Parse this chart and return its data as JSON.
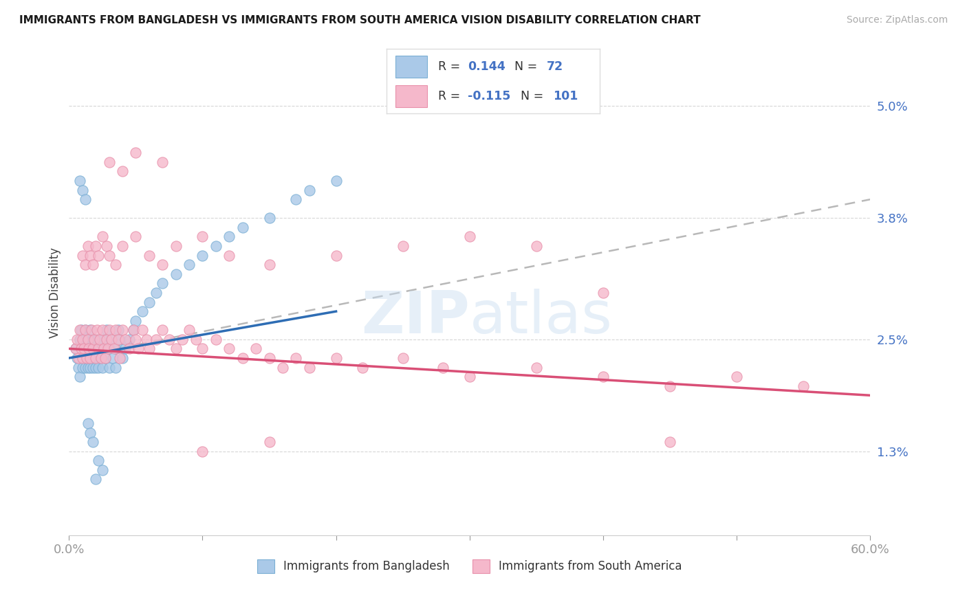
{
  "title": "IMMIGRANTS FROM BANGLADESH VS IMMIGRANTS FROM SOUTH AMERICA VISION DISABILITY CORRELATION CHART",
  "source": "Source: ZipAtlas.com",
  "ylabel": "Vision Disability",
  "xlim": [
    0.0,
    0.6
  ],
  "ylim": [
    0.004,
    0.056
  ],
  "yticks": [
    0.013,
    0.025,
    0.038,
    0.05
  ],
  "ytick_labels": [
    "1.3%",
    "2.5%",
    "3.8%",
    "5.0%"
  ],
  "blue_color": "#aac9e8",
  "blue_edge_color": "#7aafd4",
  "pink_color": "#f5b8cb",
  "pink_edge_color": "#e890aa",
  "blue_line_color": "#2e6db4",
  "pink_line_color": "#d94f76",
  "dashed_line_color": "#b8b8b8",
  "axis_color": "#4472c4",
  "background_color": "#ffffff",
  "watermark": "ZIPatlas",
  "blue_scatter_x": [
    0.005,
    0.006,
    0.007,
    0.008,
    0.008,
    0.009,
    0.01,
    0.01,
    0.01,
    0.011,
    0.012,
    0.012,
    0.013,
    0.013,
    0.014,
    0.014,
    0.015,
    0.015,
    0.016,
    0.016,
    0.017,
    0.018,
    0.018,
    0.019,
    0.02,
    0.02,
    0.021,
    0.022,
    0.023,
    0.024,
    0.025,
    0.025,
    0.026,
    0.027,
    0.028,
    0.03,
    0.03,
    0.032,
    0.033,
    0.035,
    0.035,
    0.037,
    0.038,
    0.04,
    0.042,
    0.045,
    0.048,
    0.05,
    0.055,
    0.06,
    0.065,
    0.07,
    0.08,
    0.09,
    0.1,
    0.11,
    0.12,
    0.13,
    0.15,
    0.17,
    0.18,
    0.2,
    0.008,
    0.01,
    0.012,
    0.014,
    0.016,
    0.018,
    0.02,
    0.022,
    0.025
  ],
  "blue_scatter_y": [
    0.024,
    0.023,
    0.022,
    0.025,
    0.021,
    0.026,
    0.023,
    0.024,
    0.022,
    0.025,
    0.022,
    0.026,
    0.023,
    0.024,
    0.022,
    0.025,
    0.023,
    0.024,
    0.022,
    0.026,
    0.023,
    0.022,
    0.025,
    0.024,
    0.023,
    0.022,
    0.025,
    0.022,
    0.024,
    0.023,
    0.022,
    0.025,
    0.024,
    0.023,
    0.026,
    0.024,
    0.022,
    0.025,
    0.023,
    0.024,
    0.022,
    0.026,
    0.025,
    0.023,
    0.024,
    0.025,
    0.026,
    0.027,
    0.028,
    0.029,
    0.03,
    0.031,
    0.032,
    0.033,
    0.034,
    0.035,
    0.036,
    0.037,
    0.038,
    0.04,
    0.041,
    0.042,
    0.042,
    0.041,
    0.04,
    0.016,
    0.015,
    0.014,
    0.01,
    0.012,
    0.011
  ],
  "pink_scatter_x": [
    0.005,
    0.006,
    0.007,
    0.008,
    0.009,
    0.01,
    0.01,
    0.011,
    0.012,
    0.013,
    0.014,
    0.015,
    0.016,
    0.017,
    0.018,
    0.019,
    0.02,
    0.021,
    0.022,
    0.023,
    0.024,
    0.025,
    0.026,
    0.027,
    0.028,
    0.029,
    0.03,
    0.032,
    0.034,
    0.035,
    0.037,
    0.038,
    0.04,
    0.042,
    0.045,
    0.048,
    0.05,
    0.052,
    0.055,
    0.058,
    0.06,
    0.065,
    0.07,
    0.075,
    0.08,
    0.085,
    0.09,
    0.095,
    0.1,
    0.11,
    0.12,
    0.13,
    0.14,
    0.15,
    0.16,
    0.17,
    0.18,
    0.2,
    0.22,
    0.25,
    0.28,
    0.3,
    0.35,
    0.4,
    0.45,
    0.5,
    0.55,
    0.01,
    0.012,
    0.014,
    0.016,
    0.018,
    0.02,
    0.022,
    0.025,
    0.028,
    0.03,
    0.035,
    0.04,
    0.05,
    0.06,
    0.07,
    0.08,
    0.1,
    0.12,
    0.15,
    0.2,
    0.25,
    0.3,
    0.35,
    0.4,
    0.45,
    0.03,
    0.04,
    0.05,
    0.07,
    0.1,
    0.15
  ],
  "pink_scatter_y": [
    0.024,
    0.025,
    0.023,
    0.026,
    0.024,
    0.023,
    0.025,
    0.024,
    0.026,
    0.023,
    0.025,
    0.024,
    0.023,
    0.026,
    0.024,
    0.025,
    0.023,
    0.026,
    0.024,
    0.025,
    0.023,
    0.026,
    0.024,
    0.023,
    0.025,
    0.024,
    0.026,
    0.025,
    0.024,
    0.026,
    0.025,
    0.023,
    0.026,
    0.025,
    0.024,
    0.026,
    0.025,
    0.024,
    0.026,
    0.025,
    0.024,
    0.025,
    0.026,
    0.025,
    0.024,
    0.025,
    0.026,
    0.025,
    0.024,
    0.025,
    0.024,
    0.023,
    0.024,
    0.023,
    0.022,
    0.023,
    0.022,
    0.023,
    0.022,
    0.023,
    0.022,
    0.021,
    0.022,
    0.021,
    0.02,
    0.021,
    0.02,
    0.034,
    0.033,
    0.035,
    0.034,
    0.033,
    0.035,
    0.034,
    0.036,
    0.035,
    0.034,
    0.033,
    0.035,
    0.036,
    0.034,
    0.033,
    0.035,
    0.036,
    0.034,
    0.033,
    0.034,
    0.035,
    0.036,
    0.035,
    0.03,
    0.014,
    0.044,
    0.043,
    0.045,
    0.044,
    0.013,
    0.014
  ]
}
